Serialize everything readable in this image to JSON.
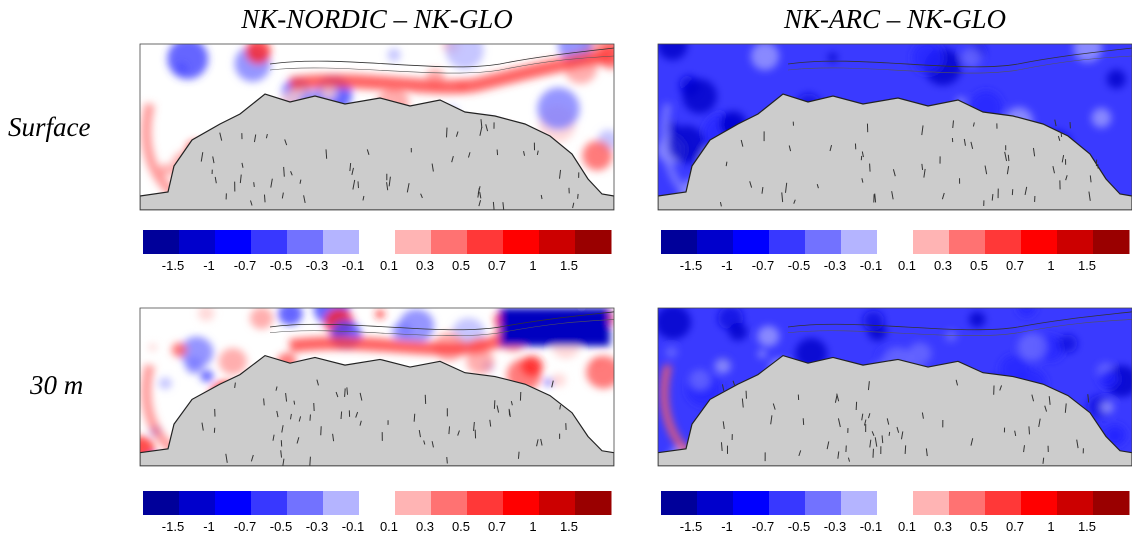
{
  "column_titles": [
    "NK-NORDIC – NK-GLO",
    "NK-ARC – NK-GLO"
  ],
  "row_labels": [
    "Surface",
    "30 m"
  ],
  "colorbar": {
    "colors": [
      "#00009a",
      "#0000cc",
      "#0000ff",
      "#3838ff",
      "#7272ff",
      "#b4b4ff",
      "#ffffff",
      "#ffb4b4",
      "#ff7272",
      "#ff3838",
      "#ff0000",
      "#cc0000",
      "#9a0000"
    ],
    "ticks": [
      -1.5,
      -1,
      -0.7,
      -0.5,
      -0.3,
      -0.1,
      0.1,
      0.3,
      0.5,
      0.7,
      1,
      1.5
    ]
  }
}
